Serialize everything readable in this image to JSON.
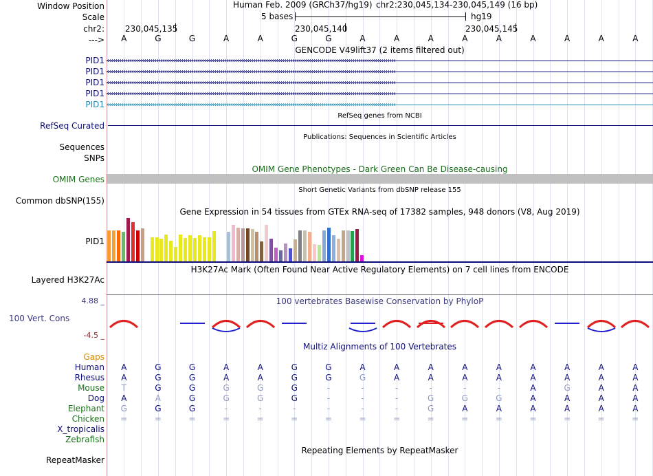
{
  "header": {
    "window_position_label": "Window Position",
    "scale_label": "Scale",
    "chrom_label": "chr2:",
    "strand_label": "--->",
    "assembly_text": "Human Feb. 2009 (GRCh37/hg19)",
    "position_text": "chr2:230,045,134-230,045,149 (16 bp)",
    "scale_text": "5 bases",
    "scale_db": "hg19",
    "coord_ticks": [
      "230,045,135",
      "230,045,140",
      "230,045,145"
    ]
  },
  "bases": [
    "A",
    "G",
    "G",
    "A",
    "A",
    "G",
    "G",
    "A",
    "A",
    "A",
    "A",
    "A",
    "A",
    "A",
    "A",
    "A"
  ],
  "gencode": {
    "title": "GENCODE V49lift37 (2 items filtered out)",
    "genes": [
      {
        "label": "PID1",
        "color": "#0c0c78"
      },
      {
        "label": "PID1",
        "color": "#0c0c78"
      },
      {
        "label": "PID1",
        "color": "#0c0c78"
      },
      {
        "label": "PID1",
        "color": "#0c0c78"
      },
      {
        "label": "PID1",
        "color": "#1f8cb4"
      }
    ]
  },
  "refseq": {
    "title": "RefSeq genes from NCBI",
    "label": "RefSeq Curated"
  },
  "publications": {
    "title": "Publications: Sequences in Scientific Articles",
    "label_sequences": "Sequences",
    "label_snps": "SNPs"
  },
  "omim": {
    "title": "OMIM Gene Phenotypes - Dark Green Can Be Disease-causing",
    "label": "OMIM Genes"
  },
  "dbsnp": {
    "title": "Short Genetic Variants from dbSNP release 155",
    "label": "Common dbSNP(155)"
  },
  "gtex": {
    "title": "Gene Expression in 54 tissues from GTEx RNA-seq of 17382 samples, 948 donors (V8, Aug 2019)",
    "label": "PID1",
    "tissue_values": [
      0.72,
      0.72,
      0.72,
      0.68,
      1.0,
      0.9,
      0.72,
      0.76,
      0.6,
      0.56,
      0.56,
      0.52,
      0.62,
      0.48,
      0.34,
      0.62,
      0.54,
      0.6,
      0.54,
      0.6,
      0.56,
      0.56,
      0.7,
      0.0,
      0.0,
      0.68,
      0.84,
      0.78,
      0.76,
      0.76,
      0.74,
      0.68,
      0.46,
      0.84,
      0.52,
      0.32,
      0.26,
      0.42,
      0.3,
      0.5,
      0.72,
      0.72,
      0.68,
      0.4,
      0.38,
      0.72,
      0.78,
      0.6,
      0.52,
      0.72,
      0.72,
      0.7,
      0.74,
      0.14
    ],
    "tissue_colors": [
      "#f59a35",
      "#f5a030",
      "#ff6600",
      "#6ab86a",
      "#a0184c",
      "#e03030",
      "#cc0000",
      "#c8a080",
      "#ffffff",
      "#e8e820",
      "#e8e820",
      "#e8e820",
      "#e8e820",
      "#e8e820",
      "#e8e820",
      "#e8e820",
      "#e8e820",
      "#e8e820",
      "#e8e820",
      "#e8e820",
      "#e8e820",
      "#e8e820",
      "#e8e820",
      "#22c8c8",
      "#ffffff",
      "#a8c0d8",
      "#f0b8c8",
      "#d8b0a8",
      "#b89898",
      "#704828",
      "#d0c0a0",
      "#b89070",
      "#806040",
      "#f0c8d0",
      "#8050a0",
      "#c060c0",
      "#6a6a9a",
      "#b890c0",
      "#5050d0",
      "#c8b090",
      "#808080",
      "#c8c0a8",
      "#f0b090",
      "#f8c8c8",
      "#c0e0a0",
      "#88a8d8",
      "#3070d0",
      "#88b0e0",
      "#d8c0b0",
      "#c0a888",
      "#c0c0c0",
      "#20a050",
      "#a01848",
      "#e010e0"
    ]
  },
  "h3k27ac": {
    "title": "H3K27Ac Mark (Often Found Near Active Regulatory Elements) on 7 cell lines from ENCODE",
    "label": "Layered H3K27Ac"
  },
  "conservation": {
    "title": "100 vertebrates Basewise Conservation by PhyloP",
    "label": "100 Vert. Cons",
    "max_label": "4.88 _",
    "min_label": "-4.5 _",
    "max_value": 4.88,
    "min_value": -4.5
  },
  "multiz": {
    "title": "Multiz Alignments of 100 Vertebrates",
    "gaps_label": "Gaps",
    "species": [
      {
        "name": "Human",
        "color": "#0c0c78",
        "bases": [
          "A",
          "G",
          "G",
          "A",
          "A",
          "G",
          "G",
          "A",
          "A",
          "A",
          "A",
          "A",
          "A",
          "A",
          "A",
          "A"
        ],
        "dim": [
          false,
          false,
          false,
          false,
          false,
          false,
          false,
          false,
          false,
          false,
          false,
          false,
          false,
          false,
          false,
          false
        ]
      },
      {
        "name": "Rhesus",
        "color": "#0c0c78",
        "bases": [
          "A",
          "G",
          "G",
          "A",
          "A",
          "G",
          "G",
          "G",
          "A",
          "A",
          "A",
          "A",
          "A",
          "A",
          "A",
          "A"
        ],
        "dim": [
          false,
          false,
          false,
          false,
          false,
          false,
          false,
          true,
          false,
          false,
          false,
          false,
          false,
          false,
          false,
          false
        ]
      },
      {
        "name": "Mouse",
        "color": "#1a6e1a",
        "bases": [
          "T",
          "G",
          "G",
          "G",
          "G",
          "G",
          "-",
          "-",
          "-",
          "-",
          "-",
          "-",
          "A",
          "G",
          "A",
          "A"
        ],
        "dim": [
          true,
          false,
          false,
          true,
          true,
          false,
          true,
          true,
          true,
          true,
          true,
          true,
          false,
          true,
          false,
          false
        ]
      },
      {
        "name": "Dog",
        "color": "#0c0c78",
        "bases": [
          "A",
          "A",
          "G",
          "G",
          "G",
          "G",
          "-",
          "-",
          "-",
          "G",
          "G",
          "G",
          "A",
          "A",
          "A",
          "A"
        ],
        "dim": [
          false,
          true,
          false,
          true,
          true,
          false,
          true,
          true,
          true,
          true,
          true,
          true,
          false,
          false,
          false,
          false
        ]
      },
      {
        "name": "Elephant",
        "color": "#1a6e1a",
        "bases": [
          "G",
          "G",
          "G",
          "-",
          "-",
          "-",
          "-",
          "-",
          "-",
          "G",
          "A",
          "A",
          "A",
          "A",
          "A",
          "A"
        ],
        "dim": [
          true,
          false,
          false,
          true,
          true,
          true,
          true,
          true,
          true,
          true,
          false,
          false,
          false,
          false,
          false,
          false
        ]
      },
      {
        "name": "Chicken",
        "color": "#1a6e1a",
        "bases": [
          "=",
          "=",
          "=",
          "=",
          "=",
          "=",
          "=",
          "=",
          "=",
          "=",
          "=",
          "=",
          "=",
          "=",
          "=",
          "="
        ],
        "dim": [
          true,
          true,
          true,
          true,
          true,
          true,
          true,
          true,
          true,
          true,
          true,
          true,
          true,
          true,
          true,
          true
        ]
      },
      {
        "name": "X_tropicalis",
        "color": "#0c0c78",
        "bases": [],
        "dim": []
      },
      {
        "name": "Zebrafish",
        "color": "#1a6e1a",
        "bases": [],
        "dim": []
      }
    ]
  },
  "repeatmasker": {
    "title": "Repeating Elements by RepeatMasker",
    "label": "RepeatMasker"
  },
  "colors": {
    "navy": "#0c0c78",
    "omim_green": "#1a6e1a",
    "gaps_orange": "#d98b00",
    "gridline": "#dde3ee",
    "omim_bar": "#c0c0c0",
    "cons_red": "#e02020",
    "cons_blue": "#2020d0",
    "cons_max": "#383880",
    "cons_min": "#8b2222"
  }
}
